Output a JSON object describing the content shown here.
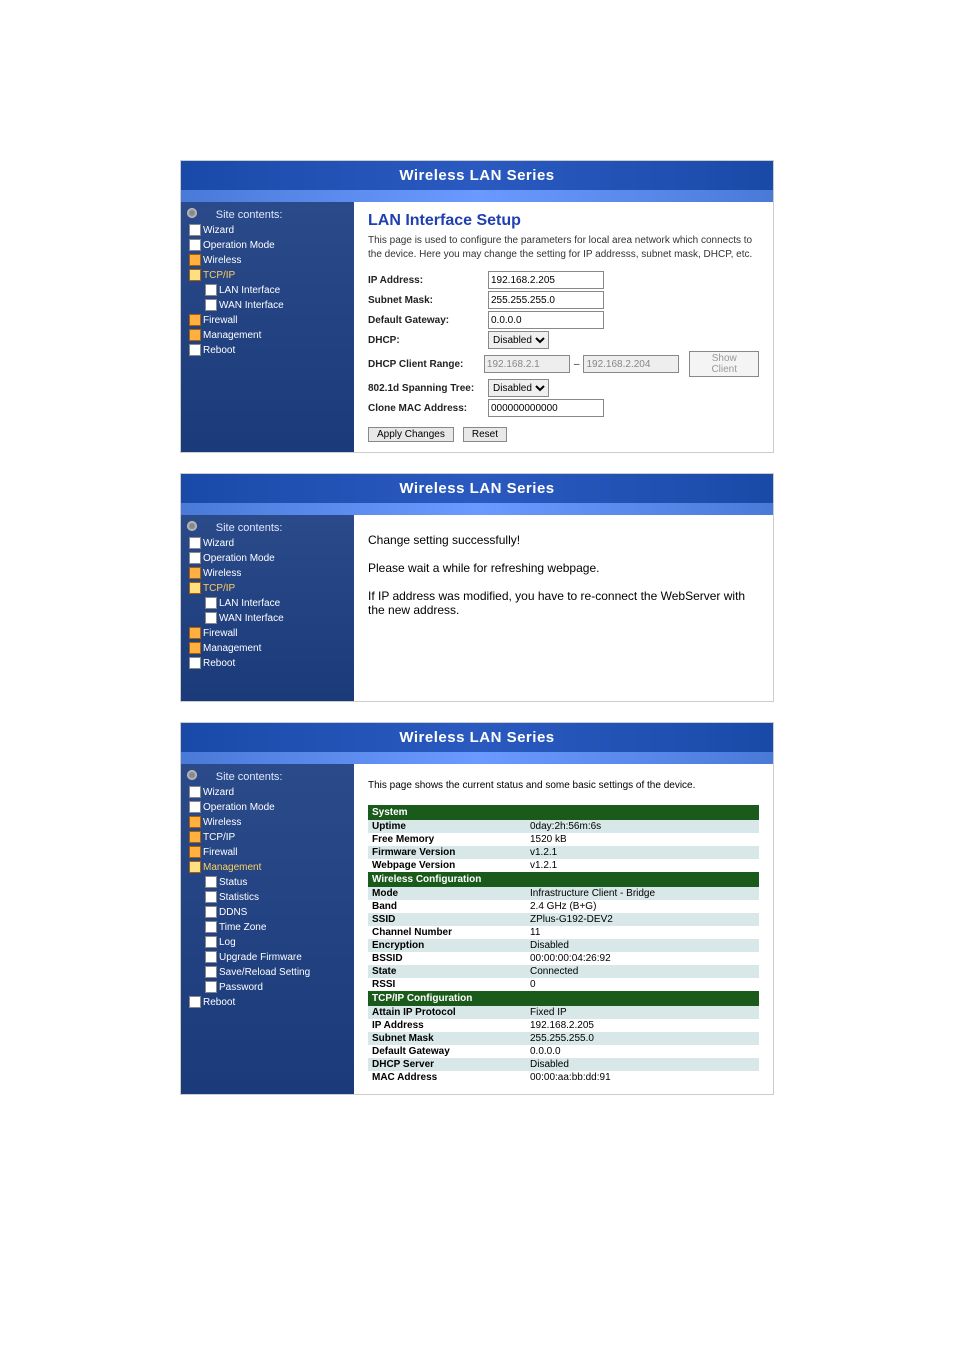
{
  "banner_title": "Wireless LAN Series",
  "panel1": {
    "sidebar_title": "Site contents:",
    "nav": [
      {
        "label": "Wizard",
        "icon": "doc",
        "sub": false
      },
      {
        "label": "Operation Mode",
        "icon": "doc",
        "sub": false
      },
      {
        "label": "Wireless",
        "icon": "folder",
        "sub": false
      },
      {
        "label": "TCP/IP",
        "icon": "folder-open",
        "sub": false,
        "active": true
      },
      {
        "label": "LAN Interface",
        "icon": "doc",
        "sub": true
      },
      {
        "label": "WAN Interface",
        "icon": "doc",
        "sub": true
      },
      {
        "label": "Firewall",
        "icon": "folder",
        "sub": false
      },
      {
        "label": "Management",
        "icon": "folder",
        "sub": false
      },
      {
        "label": "Reboot",
        "icon": "doc",
        "sub": false
      }
    ],
    "heading": "LAN Interface Setup",
    "description": "This page is used to configure the parameters for local area network which connects to the device. Here you may change the setting for IP addresss, subnet mask, DHCP, etc.",
    "fields": {
      "ip_address": {
        "label": "IP Address:",
        "value": "192.168.2.205"
      },
      "subnet_mask": {
        "label": "Subnet Mask:",
        "value": "255.255.255.0"
      },
      "default_gateway": {
        "label": "Default Gateway:",
        "value": "0.0.0.0"
      },
      "dhcp": {
        "label": "DHCP:",
        "value": "Disabled"
      },
      "dhcp_range": {
        "label": "DHCP Client Range:",
        "start": "192.168.2.1",
        "end": "192.168.2.204",
        "button": "Show Client"
      },
      "spanning_tree": {
        "label": "802.1d Spanning Tree:",
        "value": "Disabled"
      },
      "clone_mac": {
        "label": "Clone MAC Address:",
        "value": "000000000000"
      }
    },
    "buttons": {
      "apply": "Apply Changes",
      "reset": "Reset"
    }
  },
  "panel2": {
    "sidebar_title": "Site contents:",
    "nav": [
      {
        "label": "Wizard",
        "icon": "doc",
        "sub": false
      },
      {
        "label": "Operation Mode",
        "icon": "doc",
        "sub": false
      },
      {
        "label": "Wireless",
        "icon": "folder",
        "sub": false
      },
      {
        "label": "TCP/IP",
        "icon": "folder-open",
        "sub": false,
        "active": true
      },
      {
        "label": "LAN Interface",
        "icon": "doc",
        "sub": true
      },
      {
        "label": "WAN Interface",
        "icon": "doc",
        "sub": true
      },
      {
        "label": "Firewall",
        "icon": "folder",
        "sub": false
      },
      {
        "label": "Management",
        "icon": "folder",
        "sub": false
      },
      {
        "label": "Reboot",
        "icon": "doc",
        "sub": false
      }
    ],
    "msg1": "Change setting successfully!",
    "msg2": "Please wait a while for refreshing webpage.",
    "msg3": "If IP address was modified, you have to re-connect the WebServer with the new address."
  },
  "panel3": {
    "sidebar_title": "Site contents:",
    "nav": [
      {
        "label": "Wizard",
        "icon": "doc",
        "sub": false
      },
      {
        "label": "Operation Mode",
        "icon": "doc",
        "sub": false
      },
      {
        "label": "Wireless",
        "icon": "folder",
        "sub": false
      },
      {
        "label": "TCP/IP",
        "icon": "folder",
        "sub": false
      },
      {
        "label": "Firewall",
        "icon": "folder",
        "sub": false
      },
      {
        "label": "Management",
        "icon": "folder-open",
        "sub": false,
        "active": true
      },
      {
        "label": "Status",
        "icon": "doc",
        "sub": true
      },
      {
        "label": "Statistics",
        "icon": "doc",
        "sub": true
      },
      {
        "label": "DDNS",
        "icon": "doc",
        "sub": true
      },
      {
        "label": "Time Zone",
        "icon": "doc",
        "sub": true
      },
      {
        "label": "Log",
        "icon": "doc",
        "sub": true
      },
      {
        "label": "Upgrade Firmware",
        "icon": "doc",
        "sub": true
      },
      {
        "label": "Save/Reload Setting",
        "icon": "doc",
        "sub": true
      },
      {
        "label": "Password",
        "icon": "doc",
        "sub": true
      },
      {
        "label": "Reboot",
        "icon": "doc",
        "sub": false
      }
    ],
    "description": "This page shows the current status and some basic settings of the device.",
    "sections": [
      {
        "header": "System",
        "rows": [
          {
            "label": "Uptime",
            "value": "0day:2h:56m:6s",
            "alt": true
          },
          {
            "label": "Free Memory",
            "value": "1520 kB",
            "alt": false
          },
          {
            "label": "Firmware Version",
            "value": "v1.2.1",
            "alt": true
          },
          {
            "label": "Webpage Version",
            "value": "v1.2.1",
            "alt": false
          }
        ]
      },
      {
        "header": "Wireless Configuration",
        "rows": [
          {
            "label": "Mode",
            "value": "Infrastructure Client - Bridge",
            "alt": true
          },
          {
            "label": "Band",
            "value": "2.4 GHz (B+G)",
            "alt": false
          },
          {
            "label": "SSID",
            "value": "ZPlus-G192-DEV2",
            "alt": true
          },
          {
            "label": "Channel Number",
            "value": "11",
            "alt": false
          },
          {
            "label": "Encryption",
            "value": "Disabled",
            "alt": true
          },
          {
            "label": "BSSID",
            "value": "00:00:00:04:26:92",
            "alt": false
          },
          {
            "label": "State",
            "value": "Connected",
            "alt": true
          },
          {
            "label": "RSSI",
            "value": "0",
            "alt": false
          }
        ]
      },
      {
        "header": "TCP/IP Configuration",
        "rows": [
          {
            "label": "Attain IP Protocol",
            "value": "Fixed IP",
            "alt": true
          },
          {
            "label": "IP Address",
            "value": "192.168.2.205",
            "alt": false
          },
          {
            "label": "Subnet Mask",
            "value": "255.255.255.0",
            "alt": true
          },
          {
            "label": "Default Gateway",
            "value": "0.0.0.0",
            "alt": false
          },
          {
            "label": "DHCP Server",
            "value": "Disabled",
            "alt": true
          },
          {
            "label": "MAC Address",
            "value": "00:00:aa:bb:dd:91",
            "alt": false
          }
        ]
      }
    ]
  },
  "colors": {
    "banner_bg": "#2a5ac0",
    "sidebar_bg": "#1a3a7a",
    "heading": "#2040b0",
    "section_hdr_bg": "#1a5a1a",
    "row_alt_bg": "#d8e8e8",
    "active_link": "#ffd060"
  }
}
